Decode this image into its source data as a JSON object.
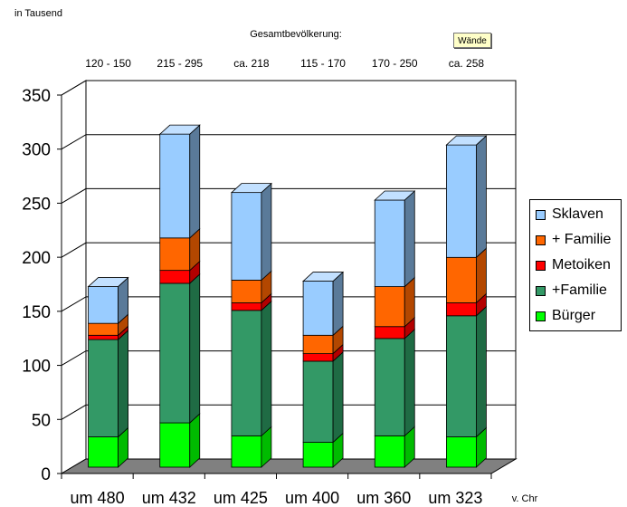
{
  "chart_data": {
    "type": "bar",
    "stacked": true,
    "three_d": true,
    "title": "Gesamtbevölkerung:",
    "ylabel": "in Tausend",
    "xlabel": "v. Chr",
    "ylim": [
      0,
      350
    ],
    "yticks": [
      0,
      50,
      100,
      150,
      200,
      250,
      300,
      350
    ],
    "categories": [
      "um 480",
      "um 432",
      "um 425",
      "um 400",
      "um 360",
      "um 323"
    ],
    "totals_labels": [
      "120 - 150",
      "215 - 295",
      "ca. 218",
      "115 - 170",
      "170 - 250",
      "ca. 258"
    ],
    "series": [
      {
        "name": "Bürger",
        "color": "#00ff00",
        "side": "#00bb00",
        "top": "#66ff66",
        "values": [
          28,
          41,
          29,
          23,
          29,
          28
        ]
      },
      {
        "name": "+Familie",
        "color": "#339966",
        "side": "#1f6b44",
        "top": "#5cb889",
        "values": [
          90,
          129,
          116,
          75,
          90,
          112
        ]
      },
      {
        "name": "Metoiken",
        "color": "#ff0000",
        "side": "#b30000",
        "top": "#ff6666",
        "values": [
          4,
          12,
          7,
          7,
          11,
          12
        ]
      },
      {
        "name": "+ Familie",
        "color": "#ff6600",
        "side": "#b34700",
        "top": "#ff9955",
        "values": [
          11,
          30,
          21,
          17,
          37,
          42
        ]
      },
      {
        "name": "Sklaven",
        "color": "#99ccff",
        "side": "#5a7a99",
        "top": "#c2e0ff",
        "values": [
          34,
          96,
          81,
          50,
          80,
          104
        ]
      }
    ],
    "legend_order": [
      "Sklaven",
      "+ Familie",
      "Metoiken",
      "+Familie",
      "Bürger"
    ],
    "grid": true,
    "legend_position": "right"
  },
  "button": {
    "label": "Wände"
  }
}
